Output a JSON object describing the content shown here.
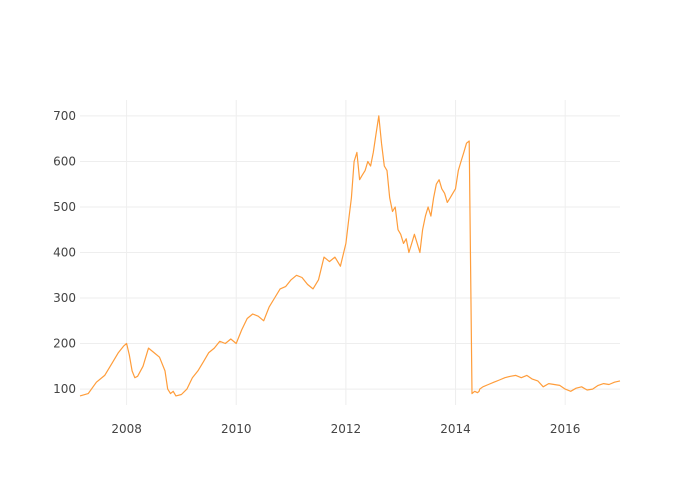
{
  "chart_data": {
    "type": "line",
    "title": "",
    "xlabel": "",
    "ylabel": "",
    "xlim": [
      2007.15,
      2017.0
    ],
    "ylim": [
      65,
      735
    ],
    "grid": true,
    "legend": "none",
    "colors": {
      "line": "#ff9d3b",
      "grid": "#eeeeee",
      "tick_text": "#444444"
    },
    "x_ticks": [
      {
        "value": 2008,
        "label": "2008"
      },
      {
        "value": 2010,
        "label": "2010"
      },
      {
        "value": 2012,
        "label": "2012"
      },
      {
        "value": 2014,
        "label": "2014"
      },
      {
        "value": 2016,
        "label": "2016"
      }
    ],
    "y_ticks": [
      {
        "value": 100,
        "label": "100"
      },
      {
        "value": 200,
        "label": "200"
      },
      {
        "value": 300,
        "label": "300"
      },
      {
        "value": 400,
        "label": "400"
      },
      {
        "value": 500,
        "label": "500"
      },
      {
        "value": 600,
        "label": "600"
      },
      {
        "value": 700,
        "label": "700"
      }
    ],
    "series": [
      {
        "x": [
          2007.15,
          2007.3,
          2007.45,
          2007.6,
          2007.75,
          2007.85,
          2007.95,
          2008.0,
          2008.05,
          2008.1,
          2008.15,
          2008.2,
          2008.3,
          2008.4,
          2008.5,
          2008.6,
          2008.7,
          2008.75,
          2008.8,
          2008.85,
          2008.9,
          2009.0,
          2009.1,
          2009.2,
          2009.3,
          2009.4,
          2009.5,
          2009.6,
          2009.7,
          2009.8,
          2009.9,
          2010.0,
          2010.1,
          2010.2,
          2010.3,
          2010.4,
          2010.5,
          2010.6,
          2010.7,
          2010.8,
          2010.9,
          2011.0,
          2011.1,
          2011.2,
          2011.3,
          2011.4,
          2011.5,
          2011.6,
          2011.7,
          2011.8,
          2011.9,
          2012.0,
          2012.05,
          2012.1,
          2012.15,
          2012.2,
          2012.25,
          2012.3,
          2012.35,
          2012.4,
          2012.45,
          2012.5,
          2012.55,
          2012.6,
          2012.65,
          2012.7,
          2012.75,
          2012.8,
          2012.85,
          2012.9,
          2012.95,
          2013.0,
          2013.05,
          2013.1,
          2013.15,
          2013.2,
          2013.25,
          2013.3,
          2013.35,
          2013.4,
          2013.45,
          2013.5,
          2013.55,
          2013.6,
          2013.65,
          2013.7,
          2013.75,
          2013.8,
          2013.85,
          2013.9,
          2013.95,
          2014.0,
          2014.05,
          2014.1,
          2014.15,
          2014.2,
          2014.25,
          2014.3,
          2014.35,
          2014.4,
          2014.43,
          2014.44,
          2014.5,
          2014.6,
          2014.7,
          2014.8,
          2014.9,
          2015.0,
          2015.1,
          2015.2,
          2015.3,
          2015.4,
          2015.5,
          2015.6,
          2015.7,
          2015.8,
          2015.9,
          2016.0,
          2016.1,
          2016.2,
          2016.3,
          2016.4,
          2016.5,
          2016.6,
          2016.7,
          2016.8,
          2016.9,
          2017.0
        ],
        "y": [
          85,
          90,
          115,
          130,
          160,
          180,
          195,
          200,
          175,
          140,
          125,
          128,
          150,
          190,
          180,
          170,
          140,
          100,
          90,
          95,
          85,
          88,
          100,
          125,
          140,
          160,
          180,
          190,
          205,
          200,
          210,
          200,
          230,
          255,
          265,
          260,
          250,
          280,
          300,
          320,
          325,
          340,
          350,
          345,
          330,
          320,
          340,
          390,
          380,
          390,
          370,
          420,
          470,
          520,
          600,
          620,
          560,
          570,
          580,
          600,
          590,
          620,
          660,
          700,
          640,
          590,
          580,
          520,
          490,
          500,
          450,
          440,
          420,
          430,
          400,
          420,
          440,
          420,
          400,
          450,
          480,
          500,
          480,
          520,
          550,
          560,
          540,
          530,
          510,
          520,
          530,
          540,
          580,
          600,
          620,
          640,
          645,
          90,
          95,
          92,
          95,
          100,
          105,
          110,
          115,
          120,
          125,
          128,
          130,
          125,
          130,
          122,
          118,
          105,
          112,
          110,
          108,
          100,
          95,
          102,
          105,
          98,
          100,
          108,
          112,
          110,
          115,
          118
        ]
      }
    ]
  }
}
